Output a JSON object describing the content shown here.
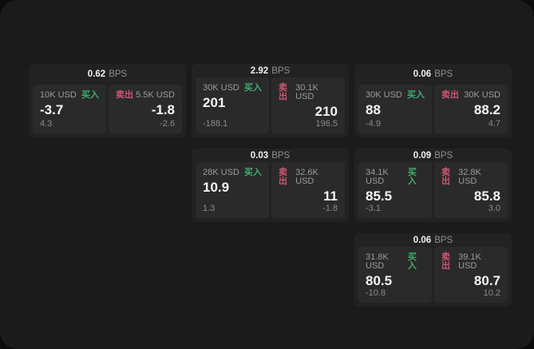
{
  "labels": {
    "bps": "BPS",
    "buy": "买入",
    "sell": "卖出"
  },
  "colors": {
    "page_background": "#0c0c0c",
    "panel_background": "#1b1b1c",
    "card_background": "#222223",
    "subpanel_background": "#2a2a2b",
    "buy_green": "#3fae6e",
    "sell_red": "#cf5670",
    "text_primary": "#f5f5f5",
    "text_secondary": "#9b9b9b"
  },
  "cards": [
    {
      "row": 1,
      "col": 1,
      "bps": "0.62",
      "buy": {
        "amount": "10K USD",
        "value": "-3.7",
        "delta": "4.3"
      },
      "sell": {
        "amount": "5.5K USD",
        "value": "-1.8",
        "delta": "-2.6"
      }
    },
    {
      "row": 1,
      "col": 2,
      "bps": "2.92",
      "buy": {
        "amount": "30K USD",
        "value": "201",
        "delta": "-188.1"
      },
      "sell": {
        "amount": "30.1K USD",
        "value": "210",
        "delta": "196.5"
      }
    },
    {
      "row": 1,
      "col": 3,
      "bps": "0.06",
      "buy": {
        "amount": "30K USD",
        "value": "88",
        "delta": "-4.9"
      },
      "sell": {
        "amount": "30K USD",
        "value": "88.2",
        "delta": "4.7"
      }
    },
    {
      "row": 2,
      "col": 2,
      "bps": "0.03",
      "buy": {
        "amount": "28K USD",
        "value": "10.9",
        "delta": "1.3"
      },
      "sell": {
        "amount": "32.6K USD",
        "value": "11",
        "delta": "-1.8"
      }
    },
    {
      "row": 2,
      "col": 3,
      "bps": "0.09",
      "buy": {
        "amount": "34.1K USD",
        "value": "85.5",
        "delta": "-3.1"
      },
      "sell": {
        "amount": "32.8K USD",
        "value": "85.8",
        "delta": "3.0"
      }
    },
    {
      "row": 3,
      "col": 3,
      "bps": "0.06",
      "buy": {
        "amount": "31.8K USD",
        "value": "80.5",
        "delta": "-10.8"
      },
      "sell": {
        "amount": "39.1K USD",
        "value": "80.7",
        "delta": "10.2"
      }
    }
  ]
}
